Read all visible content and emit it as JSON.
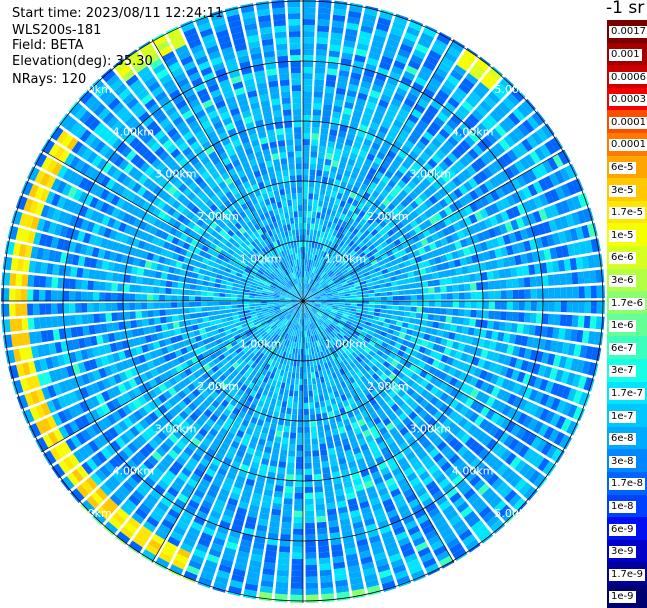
{
  "info": {
    "start_time": "Start time: 2023/08/11 12:24:11",
    "device": "WLS200s-181",
    "field": "Field: BETA",
    "elevation": "Elevation(deg): 35.30",
    "nrays": "NRays: 120"
  },
  "colors": {
    "ring": "#000000",
    "range_label": "#ffffff",
    "background": "#ffffff"
  },
  "chart_data": {
    "type": "heatmap",
    "projection": "polar",
    "n_rays": 120,
    "range_rings_km": [
      1.0,
      2.0,
      3.0,
      4.0,
      5.0
    ],
    "ring_label_texts": [
      "1.00km",
      "2.00km",
      "3.00km",
      "4.00km",
      "5.00km"
    ],
    "colorbar": {
      "unit": "-1 sr",
      "scale": "log",
      "levels": [
        {
          "label": "0.0017",
          "color": "#7a0000"
        },
        {
          "label": "0.001",
          "color": "#a50000"
        },
        {
          "label": "0.0006",
          "color": "#cc0000"
        },
        {
          "label": "0.0003",
          "color": "#f00000"
        },
        {
          "label": "0.00017",
          "color": "#ff4d00"
        },
        {
          "label": "0.0001",
          "color": "#ff7a00"
        },
        {
          "label": "6e-5",
          "color": "#ffa500"
        },
        {
          "label": "3e-5",
          "color": "#ffc800"
        },
        {
          "label": "1.7e-5",
          "color": "#ffe600"
        },
        {
          "label": "1e-5",
          "color": "#f5ff00"
        },
        {
          "label": "6e-6",
          "color": "#d7ff1f"
        },
        {
          "label": "3e-6",
          "color": "#b4ff46"
        },
        {
          "label": "1.7e-6",
          "color": "#8cff6e"
        },
        {
          "label": "1e-6",
          "color": "#64ff96"
        },
        {
          "label": "6e-7",
          "color": "#3cffbe"
        },
        {
          "label": "3e-7",
          "color": "#14ffe6"
        },
        {
          "label": "1.7e-7",
          "color": "#00e6ff"
        },
        {
          "label": "1e-7",
          "color": "#00c8ff"
        },
        {
          "label": "6e-8",
          "color": "#00aaff"
        },
        {
          "label": "3e-8",
          "color": "#0087ff"
        },
        {
          "label": "1.7e-8",
          "color": "#0064ff"
        },
        {
          "label": "1e-8",
          "color": "#0040ff"
        },
        {
          "label": "6e-9",
          "color": "#0010f0"
        },
        {
          "label": "3e-9",
          "color": "#0000c8"
        },
        {
          "label": "1.7e-9",
          "color": "#00009c"
        },
        {
          "label": "1e-9",
          "color": "#000070"
        }
      ]
    },
    "features": [
      {
        "description": "enhanced backscatter arc",
        "azimuth_from_deg": 205,
        "azimuth_to_deg": 305,
        "range_km": 4.75,
        "level_index": 8
      },
      {
        "description": "enhanced backscatter arc",
        "azimuth_from_deg": 320,
        "azimuth_to_deg": 335,
        "range_km": 4.85,
        "level_index": 10
      },
      {
        "description": "enhanced backscatter arc",
        "azimuth_from_deg": 32,
        "azimuth_to_deg": 42,
        "range_km": 4.85,
        "level_index": 10
      },
      {
        "description": "enhanced backscatter arc",
        "azimuth_from_deg": 200,
        "azimuth_to_deg": 228,
        "range_km": 5.1,
        "level_index": 12
      },
      {
        "description": "enhanced backscatter arc",
        "azimuth_from_deg": 165,
        "azimuth_to_deg": 188,
        "range_km": 5.0,
        "level_index": 13
      }
    ]
  }
}
